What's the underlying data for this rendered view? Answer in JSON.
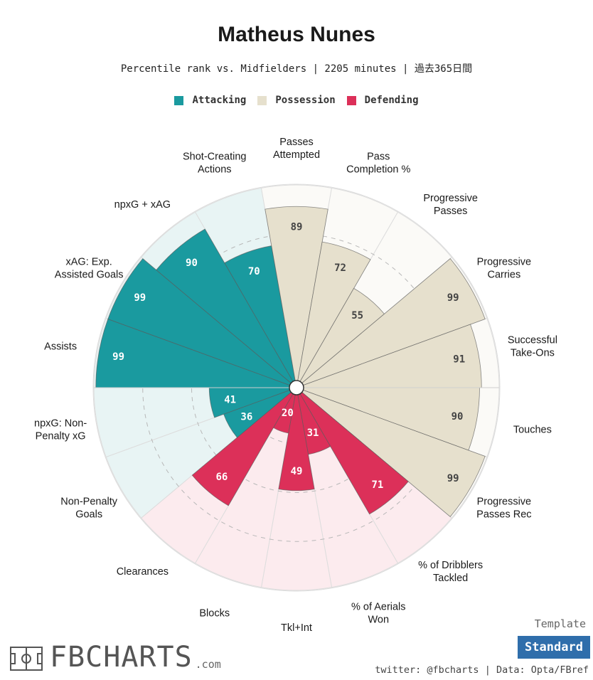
{
  "title": "Matheus Nunes",
  "subtitle": "Percentile rank vs. Midfielders | 2205 minutes | 過去365日間",
  "legend": [
    {
      "label": "Attacking",
      "color": "#1a9a9f"
    },
    {
      "label": "Possession",
      "color": "#e6e0cd"
    },
    {
      "label": "Defending",
      "color": "#dc3059"
    }
  ],
  "chart_data": {
    "type": "polar-bar",
    "range": [
      0,
      100
    ],
    "categories": [
      {
        "label": "Shot-Creating\nActions",
        "value": 70,
        "group": "Attacking"
      },
      {
        "label": "Passes\nAttempted",
        "value": 89,
        "group": "Possession"
      },
      {
        "label": "Pass\nCompletion %",
        "value": 72,
        "group": "Possession"
      },
      {
        "label": "Progressive\nPasses",
        "value": 55,
        "group": "Possession"
      },
      {
        "label": "Progressive\nCarries",
        "value": 99,
        "group": "Possession"
      },
      {
        "label": "Successful\nTake-Ons",
        "value": 91,
        "group": "Possession"
      },
      {
        "label": "Touches",
        "value": 90,
        "group": "Possession"
      },
      {
        "label": "Progressive\nPasses Rec",
        "value": 99,
        "group": "Possession"
      },
      {
        "label": "% of Dribblers\nTackled",
        "value": 71,
        "group": "Defending"
      },
      {
        "label": "% of Aerials\nWon",
        "value": 31,
        "group": "Defending"
      },
      {
        "label": "Tkl+Int",
        "value": 49,
        "group": "Defending"
      },
      {
        "label": "Blocks",
        "value": 20,
        "group": "Defending"
      },
      {
        "label": "Clearances",
        "value": 66,
        "group": "Defending"
      },
      {
        "label": "Non-Penalty\nGoals",
        "value": 36,
        "group": "Attacking"
      },
      {
        "label": "npxG: Non-\nPenalty xG",
        "value": 41,
        "group": "Attacking"
      },
      {
        "label": "Assists",
        "value": 99,
        "group": "Attacking"
      },
      {
        "label": "xAG: Exp.\nAssisted Goals",
        "value": 99,
        "group": "Attacking"
      },
      {
        "label": "npxG + xAG",
        "value": 90,
        "group": "Attacking"
      }
    ],
    "group_colors": {
      "Attacking": {
        "bar": "#1a9a9f",
        "bg": "#e8f4f4"
      },
      "Possession": {
        "bar": "#e6e0cd",
        "bg": "#fbfaf7"
      },
      "Defending": {
        "bar": "#dc3059",
        "bg": "#fcebee"
      }
    },
    "gridlines": [
      25,
      50,
      75
    ],
    "grid_style": "dashed"
  },
  "branding": {
    "logo_text": "FBCHARTS",
    "logo_suffix": ".com"
  },
  "template": {
    "label": "Template",
    "button": "Standard"
  },
  "credits": "twitter: @fbcharts | Data: Opta/FBref"
}
